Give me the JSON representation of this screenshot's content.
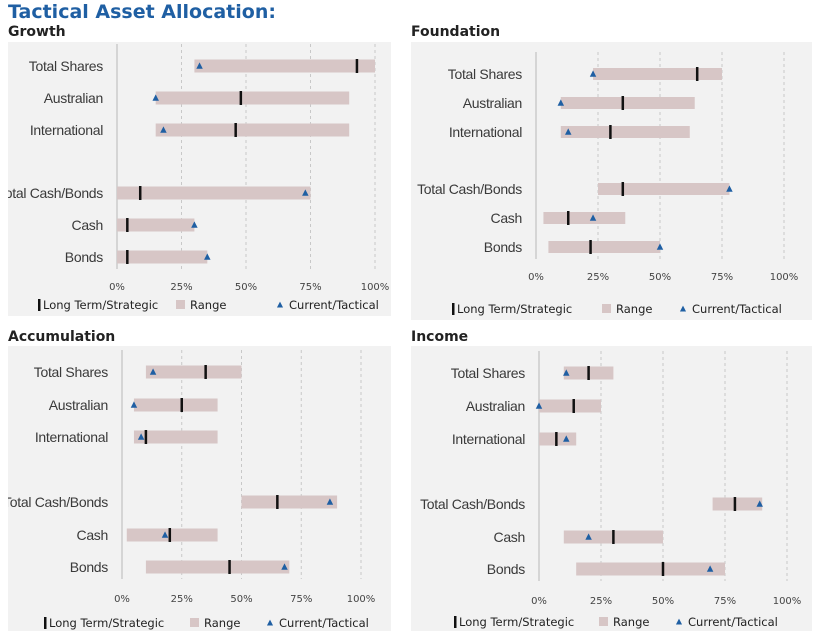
{
  "title": "Tactical Asset Allocation:",
  "legend": {
    "strategic": "Long Term/Strategic",
    "range": "Range",
    "tactical": "Current/Tactical"
  },
  "colors": {
    "title": "#1f5fa3",
    "range": "#d7c6c6",
    "strategic": "#111111",
    "tactical": "#1f5fa3",
    "panel_bg": "#f2f2f2"
  },
  "chart_data": [
    {
      "type": "range-bar",
      "title": "Growth",
      "categories": [
        "Total Shares",
        "Australian",
        "International",
        "Total Cash/Bonds",
        "Cash",
        "Bonds"
      ],
      "range_low": [
        30,
        15,
        15,
        0,
        0,
        0
      ],
      "range_high": [
        100,
        90,
        90,
        75,
        30,
        35
      ],
      "strategic": [
        93,
        48,
        46,
        9,
        4,
        4
      ],
      "tactical": [
        32,
        15,
        18,
        73,
        30,
        35
      ],
      "xlim": [
        0,
        100
      ],
      "xticks": [
        "0%",
        "25%",
        "50%",
        "75%",
        "100%"
      ]
    },
    {
      "type": "range-bar",
      "title": "Foundation",
      "categories": [
        "Total Shares",
        "Australian",
        "International",
        "Total Cash/Bonds",
        "Cash",
        "Bonds"
      ],
      "range_low": [
        23,
        10,
        10,
        25,
        3,
        5
      ],
      "range_high": [
        75,
        64,
        62,
        78,
        36,
        50
      ],
      "strategic": [
        65,
        35,
        30,
        35,
        13,
        22
      ],
      "tactical": [
        23,
        10,
        13,
        78,
        23,
        50
      ],
      "xlim": [
        0,
        100
      ],
      "xticks": [
        "0%",
        "25%",
        "50%",
        "75%",
        "100%"
      ]
    },
    {
      "type": "range-bar",
      "title": "Accumulation",
      "categories": [
        "Total Shares",
        "Australian",
        "International",
        "Total Cash/Bonds",
        "Cash",
        "Bonds"
      ],
      "range_low": [
        10,
        5,
        5,
        50,
        2,
        10
      ],
      "range_high": [
        50,
        40,
        40,
        90,
        40,
        70
      ],
      "strategic": [
        35,
        25,
        10,
        65,
        20,
        45
      ],
      "tactical": [
        13,
        5,
        8,
        87,
        18,
        68
      ],
      "xlim": [
        0,
        100
      ],
      "xticks": [
        "0%",
        "25%",
        "50%",
        "75%",
        "100%"
      ]
    },
    {
      "type": "range-bar",
      "title": "Income",
      "categories": [
        "Total Shares",
        "Australian",
        "International",
        "Total Cash/Bonds",
        "Cash",
        "Bonds"
      ],
      "range_low": [
        10,
        0,
        0,
        70,
        10,
        15
      ],
      "range_high": [
        30,
        25,
        15,
        90,
        50,
        75
      ],
      "strategic": [
        20,
        14,
        7,
        79,
        30,
        50
      ],
      "tactical": [
        11,
        0,
        11,
        89,
        20,
        69
      ],
      "xlim": [
        0,
        100
      ],
      "xticks": [
        "0%",
        "25%",
        "50%",
        "75%",
        "100%"
      ]
    }
  ]
}
